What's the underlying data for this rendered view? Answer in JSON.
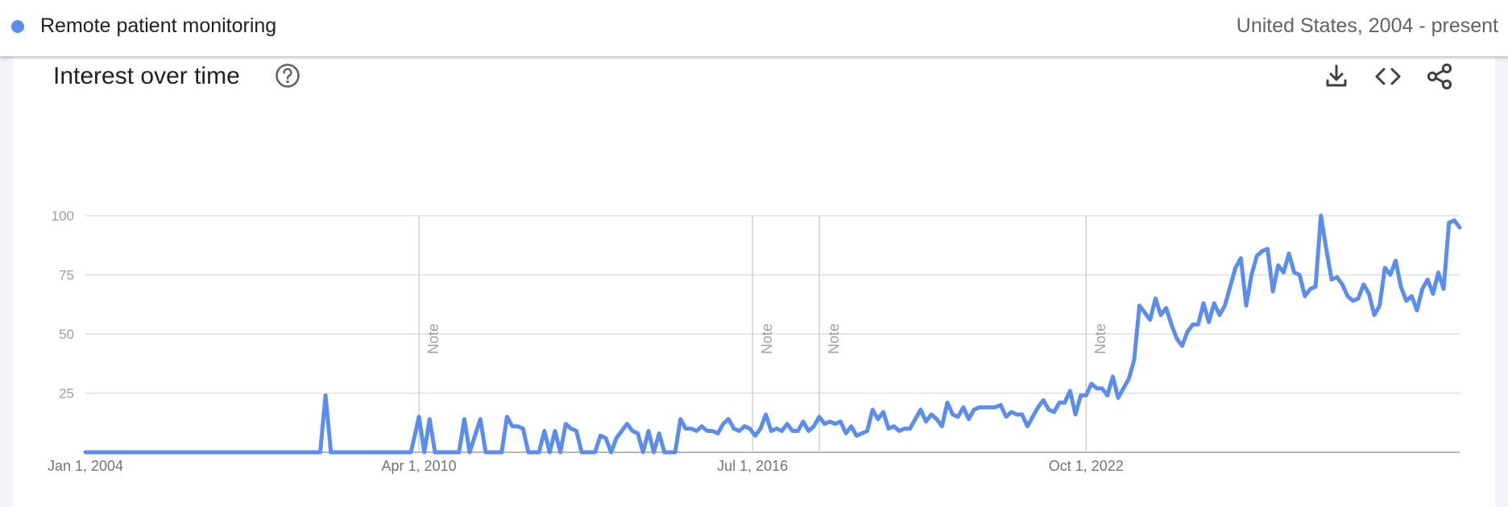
{
  "header": {
    "series_label": "Remote patient monitoring",
    "region_range": "United States, 2004 - present",
    "series_color": "#5b8def"
  },
  "card": {
    "title": "Interest over time",
    "help_icon": "help-circle-icon",
    "tools": [
      "download-icon",
      "embed-code-icon",
      "share-icon"
    ]
  },
  "chart_data": {
    "type": "line",
    "title": "Interest over time",
    "xlabel": "",
    "ylabel": "",
    "xlim": [
      "Jan 1, 2004",
      "present"
    ],
    "ylim": [
      0,
      100
    ],
    "y_ticks": [
      25,
      50,
      75,
      100
    ],
    "x_tick_labels": [
      "Jan 1, 2004",
      "Apr 1, 2010",
      "Jul 1, 2016",
      "Oct 1, 2022"
    ],
    "x_tick_years": [
      2004.0,
      2010.25,
      2016.5,
      2022.75
    ],
    "notes": [
      {
        "year": 2010.25,
        "label": "Note"
      },
      {
        "year": 2016.5,
        "label": "Note"
      },
      {
        "year": 2017.75,
        "label": "Note"
      },
      {
        "year": 2022.75,
        "label": "Note"
      }
    ],
    "grid": true,
    "legend": "top-left",
    "series": [
      {
        "name": "Remote patient monitoring",
        "color": "#5b8def",
        "points": [
          [
            2004.0,
            0
          ],
          [
            2008.4,
            0
          ],
          [
            2008.5,
            24
          ],
          [
            2008.6,
            0
          ],
          [
            2010.1,
            0
          ],
          [
            2010.25,
            15
          ],
          [
            2010.35,
            0
          ],
          [
            2010.45,
            14
          ],
          [
            2010.55,
            0
          ],
          [
            2011.0,
            0
          ],
          [
            2011.1,
            14
          ],
          [
            2011.2,
            0
          ],
          [
            2011.4,
            14
          ],
          [
            2011.5,
            0
          ],
          [
            2011.8,
            0
          ],
          [
            2011.9,
            15
          ],
          [
            2012.0,
            11
          ],
          [
            2012.1,
            11
          ],
          [
            2012.2,
            10
          ],
          [
            2012.3,
            0
          ],
          [
            2012.5,
            0
          ],
          [
            2012.6,
            9
          ],
          [
            2012.7,
            0
          ],
          [
            2012.8,
            9
          ],
          [
            2012.9,
            0
          ],
          [
            2013.0,
            12
          ],
          [
            2013.1,
            10
          ],
          [
            2013.2,
            9
          ],
          [
            2013.3,
            0
          ],
          [
            2013.55,
            0
          ],
          [
            2013.65,
            7
          ],
          [
            2013.75,
            6
          ],
          [
            2013.85,
            0
          ],
          [
            2013.95,
            6
          ],
          [
            2014.05,
            9
          ],
          [
            2014.15,
            12
          ],
          [
            2014.25,
            9
          ],
          [
            2014.35,
            8
          ],
          [
            2014.45,
            0
          ],
          [
            2014.55,
            9
          ],
          [
            2014.65,
            0
          ],
          [
            2014.75,
            8
          ],
          [
            2014.85,
            0
          ],
          [
            2015.05,
            0
          ],
          [
            2015.15,
            14
          ],
          [
            2015.25,
            10
          ],
          [
            2015.35,
            10
          ],
          [
            2015.45,
            9
          ],
          [
            2015.55,
            11
          ],
          [
            2015.65,
            9
          ],
          [
            2015.75,
            9
          ],
          [
            2015.85,
            8
          ],
          [
            2015.95,
            12
          ],
          [
            2016.05,
            14
          ],
          [
            2016.15,
            10
          ],
          [
            2016.25,
            9
          ],
          [
            2016.35,
            11
          ],
          [
            2016.45,
            10
          ],
          [
            2016.55,
            7
          ],
          [
            2016.65,
            10
          ],
          [
            2016.75,
            16
          ],
          [
            2016.85,
            9
          ],
          [
            2016.95,
            10
          ],
          [
            2017.05,
            9
          ],
          [
            2017.15,
            12
          ],
          [
            2017.25,
            9
          ],
          [
            2017.35,
            9
          ],
          [
            2017.45,
            13
          ],
          [
            2017.55,
            9
          ],
          [
            2017.65,
            11
          ],
          [
            2017.75,
            15
          ],
          [
            2017.85,
            12
          ],
          [
            2017.95,
            13
          ],
          [
            2018.05,
            12
          ],
          [
            2018.15,
            13
          ],
          [
            2018.25,
            8
          ],
          [
            2018.35,
            11
          ],
          [
            2018.45,
            7
          ],
          [
            2018.55,
            8
          ],
          [
            2018.65,
            9
          ],
          [
            2018.75,
            18
          ],
          [
            2018.85,
            14
          ],
          [
            2018.95,
            17
          ],
          [
            2019.05,
            10
          ],
          [
            2019.15,
            11
          ],
          [
            2019.25,
            9
          ],
          [
            2019.35,
            10
          ],
          [
            2019.45,
            10
          ],
          [
            2019.55,
            14
          ],
          [
            2019.65,
            18
          ],
          [
            2019.75,
            13
          ],
          [
            2019.85,
            16
          ],
          [
            2019.95,
            14
          ],
          [
            2020.05,
            11
          ],
          [
            2020.15,
            21
          ],
          [
            2020.25,
            16
          ],
          [
            2020.35,
            15
          ],
          [
            2020.45,
            19
          ],
          [
            2020.55,
            14
          ],
          [
            2020.65,
            18
          ],
          [
            2020.75,
            19
          ],
          [
            2020.85,
            19
          ],
          [
            2020.95,
            19
          ],
          [
            2021.05,
            19
          ],
          [
            2021.15,
            20
          ],
          [
            2021.25,
            15
          ],
          [
            2021.35,
            17
          ],
          [
            2021.45,
            16
          ],
          [
            2021.55,
            16
          ],
          [
            2021.65,
            11
          ],
          [
            2021.75,
            15
          ],
          [
            2021.85,
            19
          ],
          [
            2021.95,
            22
          ],
          [
            2022.05,
            18
          ],
          [
            2022.15,
            17
          ],
          [
            2022.25,
            21
          ],
          [
            2022.35,
            21
          ],
          [
            2022.45,
            26
          ],
          [
            2022.55,
            16
          ],
          [
            2022.65,
            24
          ],
          [
            2022.75,
            24
          ],
          [
            2022.85,
            29
          ],
          [
            2022.95,
            27
          ],
          [
            2023.05,
            27
          ],
          [
            2023.15,
            24
          ],
          [
            2023.25,
            32
          ],
          [
            2023.35,
            23
          ],
          [
            2023.45,
            27
          ],
          [
            2023.55,
            31
          ],
          [
            2023.65,
            39
          ],
          [
            2023.75,
            62
          ],
          [
            2023.85,
            59
          ],
          [
            2023.95,
            56
          ],
          [
            2024.05,
            65
          ],
          [
            2024.15,
            58
          ],
          [
            2024.25,
            61
          ],
          [
            2024.35,
            54
          ],
          [
            2024.45,
            48
          ],
          [
            2024.55,
            45
          ],
          [
            2024.65,
            51
          ],
          [
            2024.75,
            54
          ],
          [
            2024.85,
            54
          ],
          [
            2024.95,
            63
          ],
          [
            2025.05,
            55
          ],
          [
            2025.15,
            63
          ],
          [
            2025.25,
            58
          ],
          [
            2025.35,
            62
          ],
          [
            2025.45,
            70
          ],
          [
            2025.55,
            78
          ],
          [
            2025.65,
            82
          ],
          [
            2025.75,
            62
          ],
          [
            2025.85,
            75
          ],
          [
            2025.95,
            83
          ],
          [
            2026.05,
            85
          ],
          [
            2026.15,
            86
          ],
          [
            2026.25,
            68
          ],
          [
            2026.35,
            79
          ],
          [
            2026.45,
            76
          ],
          [
            2026.55,
            84
          ],
          [
            2026.65,
            76
          ],
          [
            2026.75,
            75
          ],
          [
            2026.85,
            66
          ],
          [
            2026.95,
            69
          ],
          [
            2027.05,
            70
          ],
          [
            2027.15,
            100
          ],
          [
            2027.25,
            86
          ],
          [
            2027.35,
            73
          ],
          [
            2027.45,
            74
          ],
          [
            2027.55,
            71
          ],
          [
            2027.65,
            66
          ],
          [
            2027.75,
            64
          ],
          [
            2027.85,
            65
          ],
          [
            2027.95,
            71
          ],
          [
            2028.05,
            67
          ],
          [
            2028.15,
            58
          ],
          [
            2028.25,
            62
          ],
          [
            2028.35,
            78
          ],
          [
            2028.45,
            75
          ],
          [
            2028.55,
            81
          ],
          [
            2028.65,
            70
          ],
          [
            2028.75,
            64
          ],
          [
            2028.85,
            66
          ],
          [
            2028.95,
            60
          ],
          [
            2029.05,
            69
          ],
          [
            2029.15,
            73
          ],
          [
            2029.25,
            67
          ],
          [
            2029.35,
            76
          ],
          [
            2029.45,
            69
          ],
          [
            2029.55,
            97
          ],
          [
            2029.65,
            98
          ],
          [
            2029.75,
            95
          ]
        ]
      }
    ]
  }
}
